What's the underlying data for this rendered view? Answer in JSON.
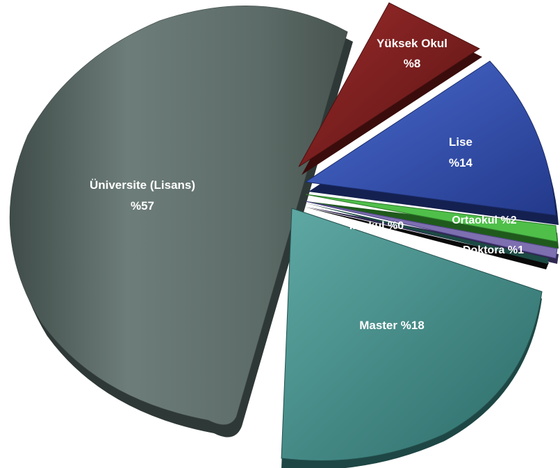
{
  "chart_data": {
    "type": "pie",
    "style": "3d-exploded",
    "slices": [
      {
        "label": "Üniversite (Lisans)",
        "value_text": "%57",
        "value": 57,
        "color": "#5f6f6b"
      },
      {
        "label": "Yüksek Okul",
        "value_text": "%8",
        "value": 8,
        "color": "#7a1e1e"
      },
      {
        "label": "Lise",
        "value_text": "%14",
        "value": 14,
        "color": "#2f4fa8"
      },
      {
        "label": "Ortaokul",
        "value_text": "%2",
        "value": 2,
        "color": "#4fbf4a"
      },
      {
        "label": "Doktora",
        "value_text": "%1",
        "value": 1,
        "color": "#7d6fb0"
      },
      {
        "label": "İlkokul",
        "value_text": "%0",
        "value": 0,
        "color": "#1c4a44"
      },
      {
        "label": "Master",
        "value_text": "%18",
        "value": 18,
        "color": "#3f8c88"
      }
    ]
  }
}
